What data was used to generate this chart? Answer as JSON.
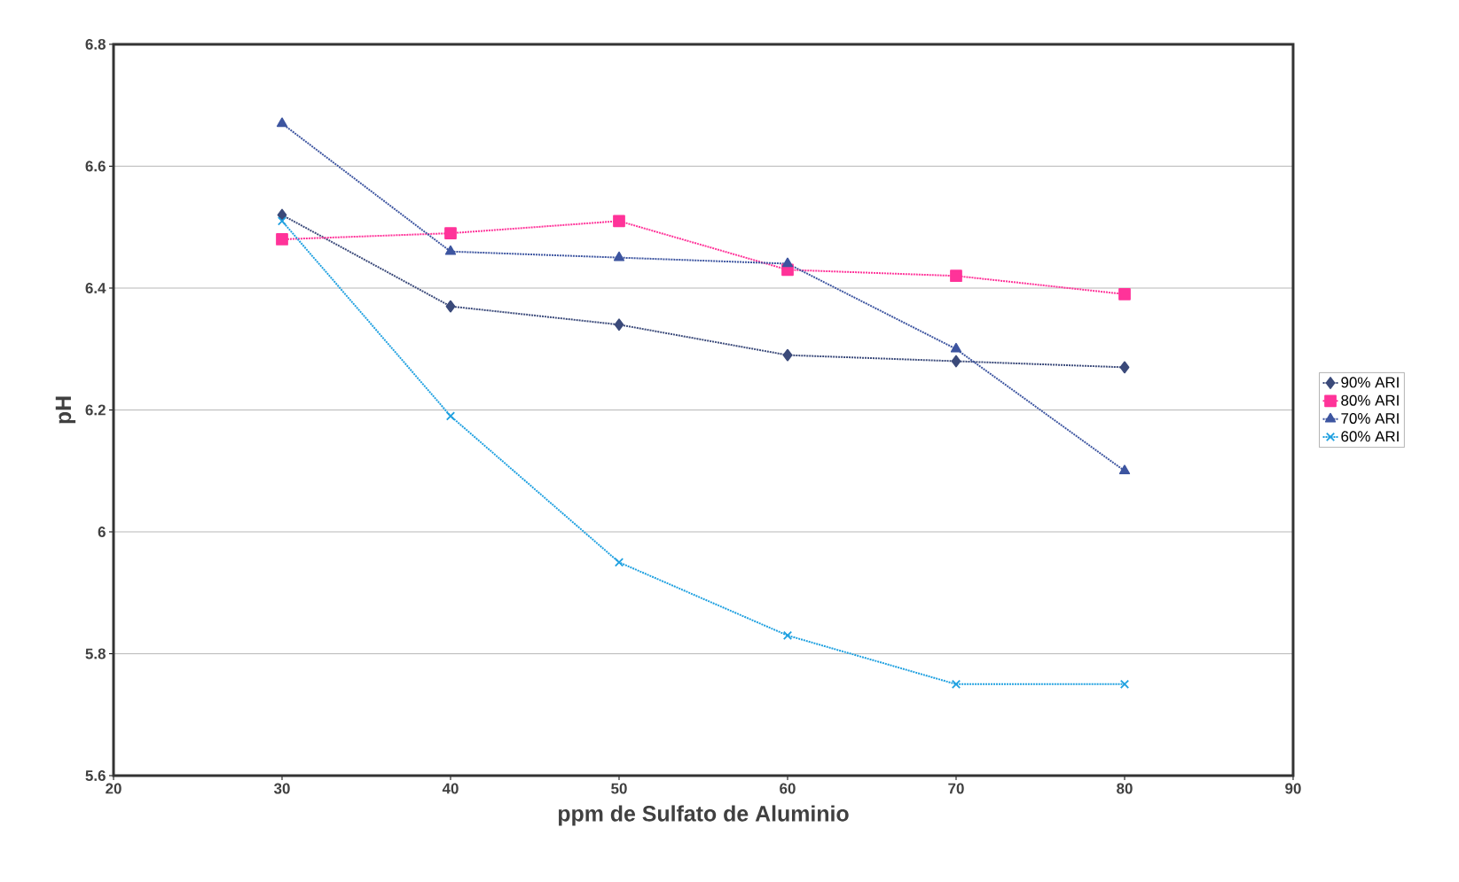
{
  "chart_data": {
    "type": "line",
    "xlabel": "ppm de Sulfato de Aluminio",
    "ylabel": "pH",
    "x": [
      30,
      40,
      50,
      60,
      70,
      80
    ],
    "series": [
      {
        "name": "90% ARI",
        "color": "#3b4a7a",
        "marker": "diamond",
        "values": [
          6.52,
          6.37,
          6.34,
          6.29,
          6.28,
          6.27
        ]
      },
      {
        "name": "80% ARI",
        "color": "#ff3399",
        "marker": "square",
        "values": [
          6.48,
          6.49,
          6.51,
          6.43,
          6.42,
          6.39
        ]
      },
      {
        "name": "70% ARI",
        "color": "#3d55a0",
        "marker": "triangle",
        "values": [
          6.67,
          6.46,
          6.45,
          6.44,
          6.3,
          6.1
        ]
      },
      {
        "name": "60% ARI",
        "color": "#1ea0e0",
        "marker": "cross",
        "values": [
          6.51,
          6.19,
          5.95,
          5.83,
          5.75,
          5.75
        ]
      }
    ],
    "xlim": [
      20,
      90
    ],
    "xticks": [
      20,
      30,
      40,
      50,
      60,
      70,
      80,
      90
    ],
    "ylim": [
      5.6,
      6.8
    ],
    "yticks": [
      5.6,
      5.8,
      6,
      6.2,
      6.4,
      6.6,
      6.8
    ],
    "grid": "y",
    "legend": "right",
    "line_style": "dotted"
  }
}
